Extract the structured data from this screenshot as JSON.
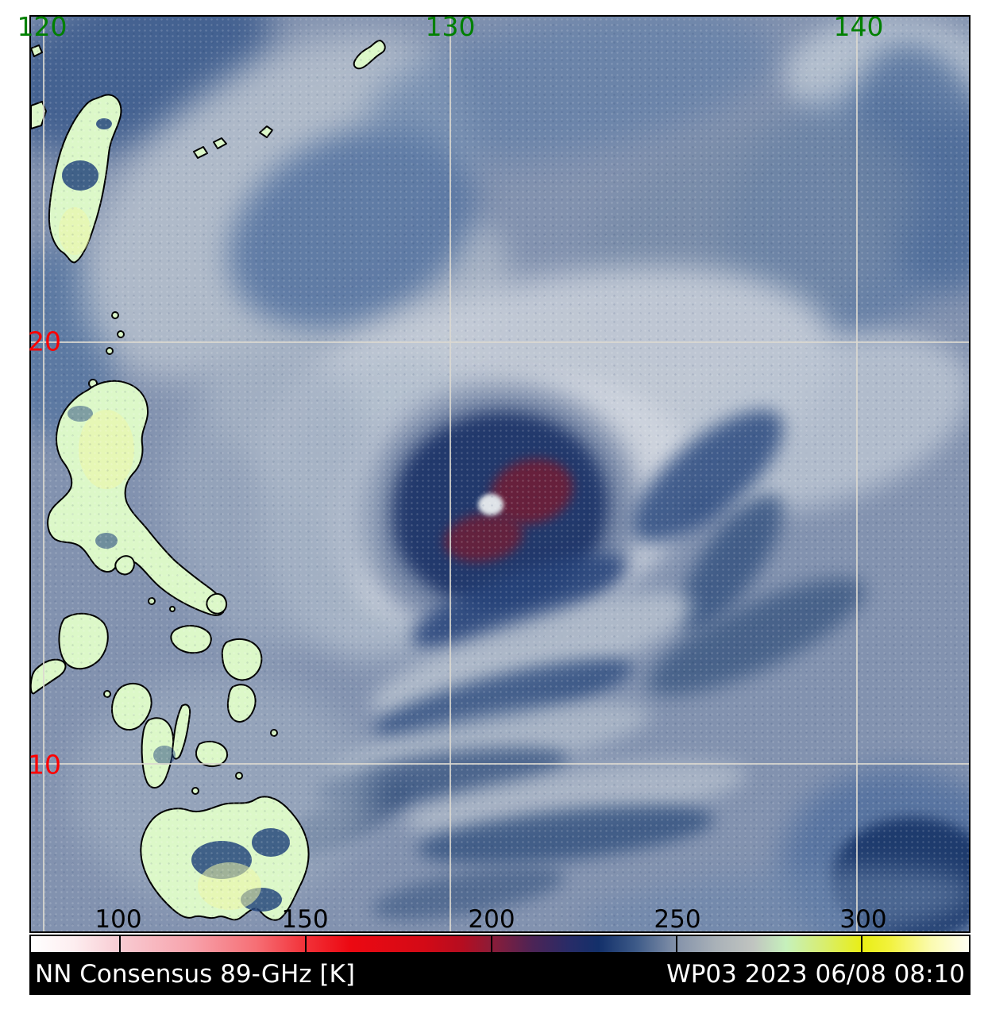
{
  "product": {
    "name": "NN Consensus 89-GHz [K]",
    "storm_datetime": "WP03 2023 06/08 08:10"
  },
  "map": {
    "lon_ticks": [
      {
        "label": "120",
        "pct": 1.35
      },
      {
        "label": "130",
        "pct": 44.73
      },
      {
        "label": "140",
        "pct": 88.1
      }
    ],
    "lat_ticks": [
      {
        "label": "20",
        "pct": 35.55
      },
      {
        "label": "10",
        "pct": 81.66
      }
    ],
    "lon_label_color": "#008000",
    "lat_label_color": "#ff0000",
    "grid_color": "#dad8d0"
  },
  "colorbar": {
    "tick_labels": [
      "100",
      "150",
      "200",
      "250",
      "300"
    ],
    "tick_pcts": [
      9.45,
      29.28,
      49.11,
      68.86,
      88.61
    ],
    "tick_label_color": "#000000",
    "stops": [
      [
        0,
        "#ffffff"
      ],
      [
        4.5,
        "#fdeef0"
      ],
      [
        9.4,
        "#f8ccd3"
      ],
      [
        17,
        "#f7a3ac"
      ],
      [
        24,
        "#f66f75"
      ],
      [
        29.3,
        "#f23138"
      ],
      [
        34,
        "#ec0912"
      ],
      [
        42,
        "#d30a16"
      ],
      [
        46,
        "#b50d20"
      ],
      [
        49.1,
        "#8c1c38"
      ],
      [
        53.5,
        "#4c2456"
      ],
      [
        57.5,
        "#272c68"
      ],
      [
        60.5,
        "#13306a"
      ],
      [
        64.5,
        "#3d5a88"
      ],
      [
        68.9,
        "#8593aa"
      ],
      [
        73,
        "#a9b1b8"
      ],
      [
        77,
        "#c0c4c0"
      ],
      [
        80.5,
        "#c6f0bc"
      ],
      [
        84.5,
        "#d8ee70"
      ],
      [
        88.6,
        "#e9ee14"
      ],
      [
        91.5,
        "#f2f23c"
      ],
      [
        96,
        "#fbfbb0"
      ],
      [
        100,
        "#fffef2"
      ]
    ]
  }
}
